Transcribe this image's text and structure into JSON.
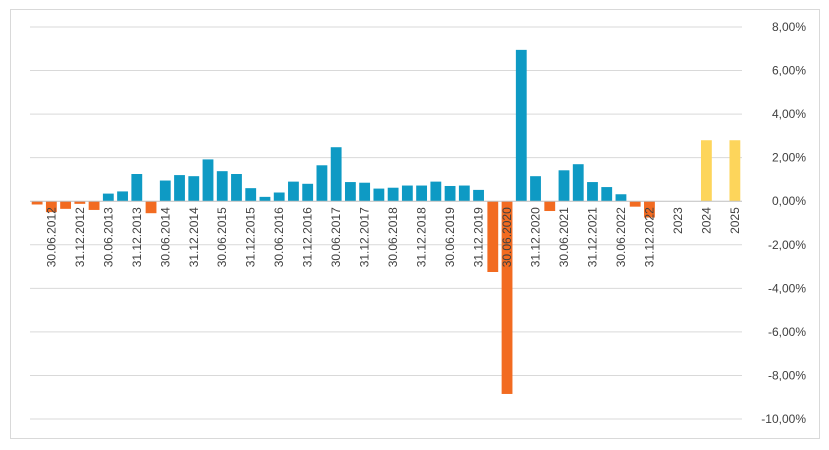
{
  "chart_data": {
    "type": "bar",
    "title": "",
    "xlabel": "",
    "ylabel": "",
    "ylim": [
      -10,
      8
    ],
    "yticks": [
      8,
      6,
      4,
      2,
      0,
      -2,
      -4,
      -6,
      -8,
      -10
    ],
    "ytick_labels": [
      "8,00%",
      "6,00%",
      "4,00%",
      "2,00%",
      "0,00%",
      "-2,00%",
      "-4,00%",
      "-6,00%",
      "-8,00%",
      "-10,00%"
    ],
    "grid": true,
    "legend": "none",
    "colors": {
      "positive": "#0e9ac4",
      "negative": "#f26b21",
      "forecast": "#fdd55b",
      "grid": "#d9d9d9",
      "axis": "#bfbfbf"
    },
    "categories": [
      "",
      "30.06.2012",
      "",
      "31.12.2012",
      "",
      "30.06.2013",
      "",
      "31.12.2013",
      "",
      "30.06.2014",
      "",
      "31.12.2014",
      "",
      "30.06.2015",
      "",
      "31.12.2015",
      "",
      "30.06.2016",
      "",
      "31.12.2016",
      "",
      "30.06.2017",
      "",
      "31.12.2017",
      "",
      "30.06.2018",
      "",
      "31.12.2018",
      "",
      "30.06.2019",
      "",
      "31.12.2019",
      "",
      "30.06.2020",
      "",
      "31.12.2020",
      "",
      "30.06.2021",
      "",
      "31.12.2021",
      "",
      "30.06.2022",
      "",
      "31.12.2022",
      "",
      "2023",
      "",
      "2024",
      "",
      "2025"
    ],
    "values": [
      -0.15,
      -0.5,
      -0.35,
      -0.12,
      -0.4,
      0.35,
      0.45,
      1.25,
      -0.55,
      0.95,
      1.2,
      1.15,
      1.92,
      1.38,
      1.25,
      0.6,
      0.2,
      0.4,
      0.9,
      0.8,
      1.65,
      2.48,
      0.88,
      0.85,
      0.58,
      0.62,
      0.72,
      0.72,
      0.9,
      0.7,
      0.72,
      0.52,
      -3.25,
      -8.85,
      6.95,
      1.15,
      -0.45,
      1.42,
      1.7,
      0.88,
      0.65,
      0.32,
      -0.25,
      -0.75,
      0,
      0,
      0,
      2.8,
      0,
      2.8
    ],
    "forecast_categories": [
      "2024",
      "2025"
    ]
  }
}
